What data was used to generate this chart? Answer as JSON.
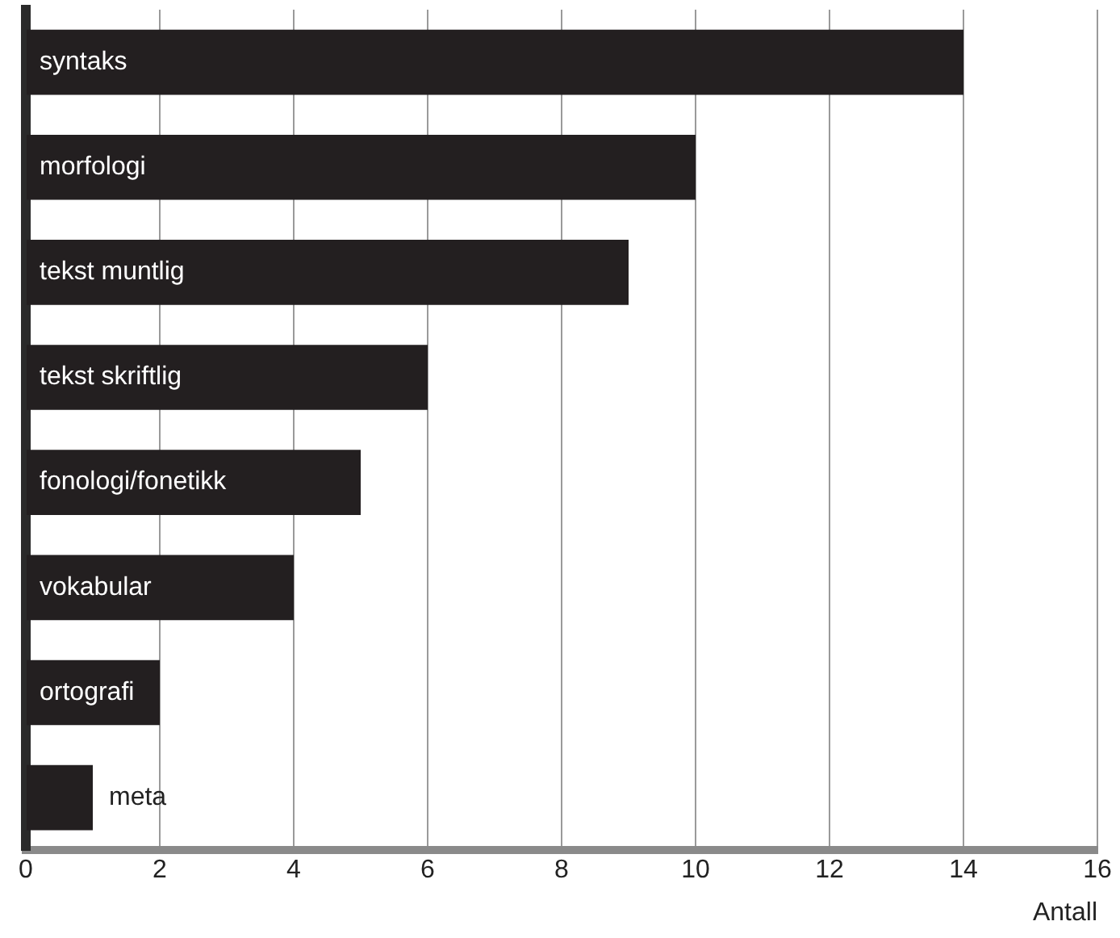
{
  "chart_data": {
    "type": "bar",
    "orientation": "horizontal",
    "xlabel": "Antall",
    "categories": [
      "syntaks",
      "morfologi",
      "tekst muntlig",
      "tekst skriftlig",
      "fonologi/fonetikk",
      "vokabular",
      "ortografi",
      "meta"
    ],
    "values": [
      14,
      10,
      9,
      6,
      5,
      4,
      2,
      1
    ],
    "color": "#231f20",
    "xlim": [
      0,
      16
    ],
    "xticks": [
      0,
      2,
      4,
      6,
      8,
      10,
      12,
      14,
      16
    ],
    "grid": "x"
  }
}
